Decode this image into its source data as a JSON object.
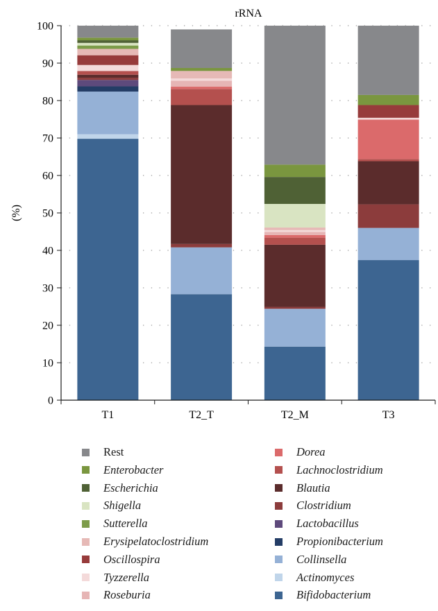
{
  "chart_data": {
    "type": "bar",
    "stacked": true,
    "title": "rRNA",
    "xlabel": "",
    "ylabel": "(%)",
    "ylim": [
      0,
      100
    ],
    "yticks": [
      0,
      10,
      20,
      30,
      40,
      50,
      60,
      70,
      80,
      90,
      100
    ],
    "grid": "dotted horizontal",
    "legend_position": "bottom",
    "categories": [
      "T1",
      "T2_T",
      "T2_M",
      "T3"
    ],
    "series": [
      {
        "name": "Bifidobacterium",
        "color": "#3d6591",
        "values": [
          69.8,
          28.3,
          14.3,
          37.4
        ]
      },
      {
        "name": "Actinomyces",
        "color": "#c0d5ea",
        "values": [
          1.2,
          0.0,
          0.0,
          0.0
        ]
      },
      {
        "name": "Collinsella",
        "color": "#95b1d6",
        "values": [
          11.4,
          12.5,
          10.1,
          8.6
        ]
      },
      {
        "name": "Propionibacterium",
        "color": "#243d66",
        "values": [
          1.4,
          0.0,
          0.0,
          0.0
        ]
      },
      {
        "name": "Lactobacillus",
        "color": "#5e4a7c",
        "values": [
          1.7,
          0.0,
          0.0,
          0.0
        ]
      },
      {
        "name": "Clostridium",
        "color": "#8c3c3c",
        "values": [
          0.6,
          0.9,
          0.5,
          6.3
        ]
      },
      {
        "name": "Blautia",
        "color": "#5b2c2c",
        "values": [
          0.8,
          37.1,
          16.6,
          11.5
        ]
      },
      {
        "name": "Lachnoclostridium",
        "color": "#b4504e",
        "values": [
          1.0,
          4.3,
          1.9,
          0.6
        ]
      },
      {
        "name": "Dorea",
        "color": "#db6a6b",
        "values": [
          0.0,
          0.6,
          0.7,
          10.5
        ]
      },
      {
        "name": "Roseburia",
        "color": "#e6b5b5",
        "values": [
          0.0,
          1.6,
          0.8,
          0.0
        ]
      },
      {
        "name": "Tyzzerella",
        "color": "#f4dada",
        "values": [
          1.6,
          0.6,
          0.5,
          0.5
        ]
      },
      {
        "name": "Oscillospira",
        "color": "#973b3b",
        "values": [
          2.6,
          0.0,
          0.0,
          3.4
        ]
      },
      {
        "name": "Erysipelatoclostridium",
        "color": "#e6b9b6",
        "values": [
          1.7,
          2.0,
          0.7,
          0.0
        ]
      },
      {
        "name": "Sutterella",
        "color": "#7d9c4a",
        "values": [
          0.9,
          0.0,
          0.0,
          0.0
        ]
      },
      {
        "name": "Shigella",
        "color": "#d9e4c2",
        "values": [
          0.7,
          0.0,
          6.3,
          0.0
        ]
      },
      {
        "name": "Escherichia",
        "color": "#4f6135",
        "values": [
          0.7,
          0.0,
          7.2,
          0.0
        ]
      },
      {
        "name": "Enterobacter",
        "color": "#7a963f",
        "values": [
          0.7,
          0.8,
          3.3,
          2.7
        ]
      },
      {
        "name": "Rest",
        "color": "#87888b",
        "values": [
          3.2,
          10.3,
          37.1,
          18.5
        ]
      }
    ]
  },
  "legend": {
    "left": [
      {
        "label": "Rest",
        "color": "#87888b",
        "italic": false
      },
      {
        "label": "Enterobacter",
        "color": "#7a963f",
        "italic": true
      },
      {
        "label": "Escherichia",
        "color": "#4f6135",
        "italic": true
      },
      {
        "label": "Shigella",
        "color": "#d9e4c2",
        "italic": true
      },
      {
        "label": "Sutterella",
        "color": "#7d9c4a",
        "italic": true
      },
      {
        "label": "Erysipelatoclostridium",
        "color": "#e6b9b6",
        "italic": true
      },
      {
        "label": "Oscillospira",
        "color": "#973b3b",
        "italic": true
      },
      {
        "label": "Tyzzerella",
        "color": "#f4dada",
        "italic": true
      },
      {
        "label": "Roseburia",
        "color": "#e6b5b5",
        "italic": true
      }
    ],
    "right": [
      {
        "label": "Dorea",
        "color": "#db6a6b",
        "italic": true
      },
      {
        "label": "Lachnoclostridium",
        "color": "#b4504e",
        "italic": true
      },
      {
        "label": "Blautia",
        "color": "#5b2c2c",
        "italic": true
      },
      {
        "label": "Clostridium",
        "color": "#8c3c3c",
        "italic": true
      },
      {
        "label": "Lactobacillus",
        "color": "#5e4a7c",
        "italic": true
      },
      {
        "label": "Propionibacterium",
        "color": "#243d66",
        "italic": true
      },
      {
        "label": "Collinsella",
        "color": "#95b1d6",
        "italic": true
      },
      {
        "label": "Actinomyces",
        "color": "#c0d5ea",
        "italic": true
      },
      {
        "label": "Bifidobacterium",
        "color": "#3d6591",
        "italic": true
      }
    ]
  }
}
